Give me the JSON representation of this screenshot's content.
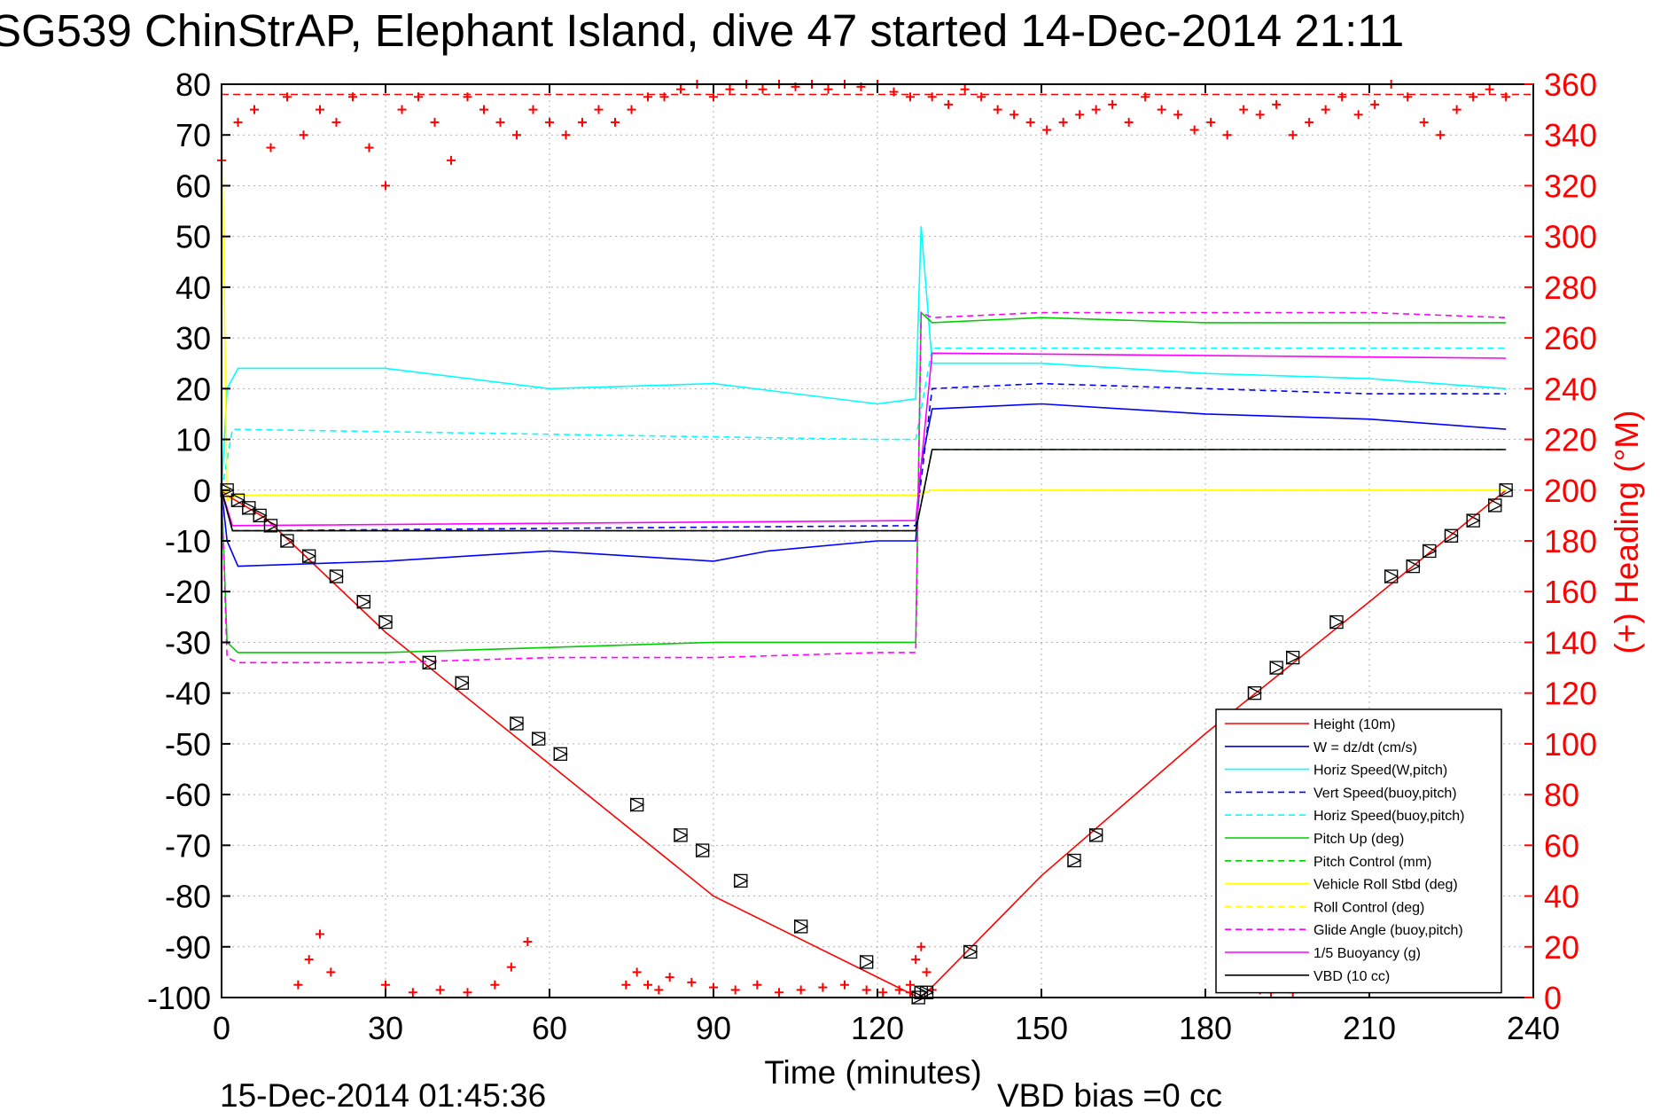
{
  "chart_data": {
    "type": "line",
    "title": "SG539 ChinStrAP, Elephant Island, dive 47 started 14-Dec-2014 21:11",
    "xlabel": "Time (minutes)",
    "ylabel": "",
    "y2label": "(+) Heading (°M)",
    "footer_left": "15-Dec-2014 01:45:36",
    "footer_right": "VBD bias =0 cc",
    "xlim": [
      0,
      240
    ],
    "ylim": [
      -100,
      80
    ],
    "y2lim": [
      0,
      360
    ],
    "grid": true,
    "legend_placement": "bottom-right",
    "x_ticks": [
      "0",
      "30",
      "60",
      "90",
      "120",
      "150",
      "180",
      "210",
      "240"
    ],
    "y_ticks": [
      "80",
      "70",
      "60",
      "50",
      "40",
      "30",
      "20",
      "10",
      "0",
      "-10",
      "-20",
      "-30",
      "-40",
      "-50",
      "-60",
      "-70",
      "-80",
      "-90",
      "-100"
    ],
    "y2_ticks": [
      "360",
      "340",
      "320",
      "300",
      "280",
      "260",
      "240",
      "220",
      "200",
      "180",
      "160",
      "140",
      "120",
      "100",
      "80",
      "60",
      "40",
      "20",
      "0"
    ],
    "heading_ref": 356,
    "series": [
      {
        "name": "Height (10m)",
        "color": "#ff0000",
        "dash": "solid",
        "x": [
          0,
          1,
          8,
          30,
          60,
          90,
          127.5,
          129,
          150,
          180,
          210,
          235
        ],
        "values": [
          0,
          -1,
          -5.5,
          -28,
          -54,
          -80,
          -100,
          -99,
          -76,
          -48,
          -22,
          0
        ]
      },
      {
        "name": "W = dz/dt (cm/s)",
        "color": "#0000ff",
        "dash": "solid",
        "x": [
          0,
          1,
          3,
          30,
          60,
          90,
          100,
          120,
          127,
          128,
          130,
          150,
          180,
          210,
          235
        ],
        "values": [
          0,
          -10,
          -15,
          -14,
          -12,
          -14,
          -12,
          -10,
          -10,
          5,
          16,
          17,
          15,
          14,
          12
        ]
      },
      {
        "name": "Horiz Speed(W,pitch)",
        "color": "#00ffff",
        "dash": "solid",
        "x": [
          0,
          1,
          3,
          30,
          60,
          90,
          120,
          127,
          128,
          130,
          150,
          180,
          210,
          235
        ],
        "values": [
          0,
          20,
          24,
          24,
          20,
          21,
          17,
          18,
          52,
          25,
          25,
          23,
          22,
          20
        ]
      },
      {
        "name": "Vert Speed(buoy,pitch)",
        "color": "#0000ff",
        "dash": "dashed",
        "x": [
          0,
          2,
          127,
          130,
          150,
          180,
          210,
          235
        ],
        "values": [
          0,
          -8,
          -7,
          20,
          21,
          20,
          19,
          19
        ]
      },
      {
        "name": "Horiz Speed(buoy,pitch)",
        "color": "#00ffff",
        "dash": "dashed",
        "x": [
          0,
          2,
          120,
          127,
          130,
          150,
          180,
          210,
          235
        ],
        "values": [
          0,
          12,
          10,
          10,
          28,
          28,
          28,
          28,
          28
        ]
      },
      {
        "name": "Pitch Up (deg)",
        "color": "#00cc00",
        "dash": "solid",
        "x": [
          0,
          1,
          3,
          30,
          60,
          90,
          120,
          127,
          128,
          130,
          150,
          180,
          210,
          235
        ],
        "values": [
          0,
          -30,
          -32,
          -32,
          -31,
          -30,
          -30,
          -30,
          35,
          33,
          34,
          33,
          33,
          33
        ]
      },
      {
        "name": "Pitch Control (mm)",
        "color": "#00cc00",
        "dash": "dashed",
        "x": [
          0,
          2,
          127,
          130,
          235
        ],
        "values": [
          0,
          -8,
          -8,
          8,
          8
        ]
      },
      {
        "name": "Vehicle Roll Stbd (deg)",
        "color": "#ffff00",
        "dash": "solid",
        "x": [
          0,
          1,
          3,
          30,
          60,
          90,
          120,
          127,
          130,
          150,
          180,
          210,
          235
        ],
        "values": [
          80,
          -2,
          -1,
          -1,
          -1,
          -1,
          -1,
          -1,
          0,
          0,
          0,
          0,
          0
        ]
      },
      {
        "name": "Roll Control (deg)",
        "color": "#ffff00",
        "dash": "dashed",
        "x": [
          0,
          2,
          127,
          130,
          235
        ],
        "values": [
          0,
          -1,
          -1,
          0,
          0
        ]
      },
      {
        "name": "Glide Angle (buoy,pitch)",
        "color": "#ff00ff",
        "dash": "dashed",
        "x": [
          0,
          1,
          3,
          30,
          60,
          90,
          120,
          127,
          128,
          130,
          150,
          180,
          210,
          235
        ],
        "values": [
          0,
          -33,
          -34,
          -34,
          -33,
          -33,
          -32,
          -32,
          35,
          34,
          35,
          35,
          35,
          34
        ]
      },
      {
        "name": "1/5 Buoyancy (g)",
        "color": "#ff00ff",
        "dash": "solid",
        "x": [
          0,
          2,
          127,
          130,
          235
        ],
        "values": [
          0,
          -7,
          -6,
          27,
          26
        ]
      },
      {
        "name": "VBD (10 cc)",
        "color": "#000000",
        "dash": "solid",
        "x": [
          0,
          2,
          127,
          130,
          235
        ],
        "values": [
          0,
          -8,
          -8,
          8,
          8
        ]
      }
    ],
    "markers": {
      "symbol": "boxed-triangle",
      "x": [
        1,
        3,
        5,
        7,
        9,
        12,
        16,
        21,
        26,
        30,
        38,
        44,
        54,
        58,
        62,
        76,
        84,
        88,
        95,
        106,
        118,
        127.5,
        128,
        129,
        137,
        156,
        160,
        189,
        193,
        196,
        204,
        214,
        218,
        221,
        225,
        229,
        233,
        235
      ],
      "values": [
        0,
        -2,
        -3.5,
        -5,
        -7,
        -10,
        -13,
        -17,
        -22,
        -26,
        -34,
        -38,
        -46,
        -49,
        -52,
        -62,
        -68,
        -71,
        -77,
        -86,
        -93,
        -100,
        -99,
        -99,
        -91,
        -73,
        -68,
        -40,
        -35,
        -33,
        -26,
        -17,
        -15,
        -12,
        -9,
        -6,
        -3,
        0
      ]
    },
    "heading": {
      "color": "#ff0000",
      "marker": "+",
      "segments": [
        {
          "x": [
            0,
            3,
            6,
            9,
            12,
            15,
            18,
            21,
            24,
            27,
            30,
            33,
            36,
            39,
            42,
            45,
            48,
            51,
            54,
            57,
            60,
            63,
            66,
            69,
            72,
            75,
            78,
            81,
            84,
            87,
            90,
            93,
            96,
            99,
            102,
            105,
            108,
            111,
            114,
            117,
            120,
            123,
            126
          ],
          "values": [
            330,
            345,
            350,
            335,
            355,
            340,
            350,
            345,
            355,
            335,
            320,
            350,
            355,
            345,
            330,
            355,
            350,
            345,
            340,
            350,
            345,
            340,
            345,
            350,
            345,
            350,
            355,
            355,
            358,
            360,
            355,
            358,
            360,
            358,
            360,
            359,
            360,
            358,
            360,
            359,
            360,
            357,
            355
          ]
        },
        {
          "x": [
            130,
            133,
            136,
            139,
            142,
            145,
            148,
            151,
            154,
            157,
            160,
            163,
            166,
            169,
            172,
            175,
            178,
            181,
            184,
            187,
            190,
            193,
            196,
            199,
            202,
            205,
            208,
            211,
            214,
            217,
            220,
            223,
            226,
            229,
            232,
            235
          ],
          "values": [
            355,
            352,
            358,
            355,
            350,
            348,
            345,
            342,
            345,
            348,
            350,
            352,
            345,
            355,
            350,
            348,
            342,
            345,
            340,
            350,
            348,
            352,
            340,
            345,
            350,
            355,
            348,
            352,
            360,
            355,
            345,
            340,
            350,
            355,
            358,
            355
          ]
        },
        {
          "x": [
            14,
            16,
            18,
            20,
            30,
            35,
            40,
            45,
            50,
            53,
            56,
            74,
            76,
            78,
            80,
            82,
            86,
            90,
            94,
            98,
            102,
            106,
            110,
            114,
            118,
            121,
            124,
            126
          ],
          "values": [
            5,
            15,
            25,
            10,
            5,
            2,
            3,
            2,
            5,
            12,
            22,
            5,
            10,
            5,
            3,
            8,
            6,
            4,
            3,
            5,
            2,
            3,
            4,
            5,
            3,
            2,
            3,
            2
          ]
        },
        {
          "x": [
            126,
            127,
            128,
            129,
            130
          ],
          "values": [
            5,
            15,
            20,
            10,
            3
          ]
        },
        {
          "x": [
            186,
            188,
            190,
            192,
            194,
            196
          ],
          "values": [
            8,
            5,
            3,
            2,
            4,
            2
          ]
        }
      ]
    }
  }
}
